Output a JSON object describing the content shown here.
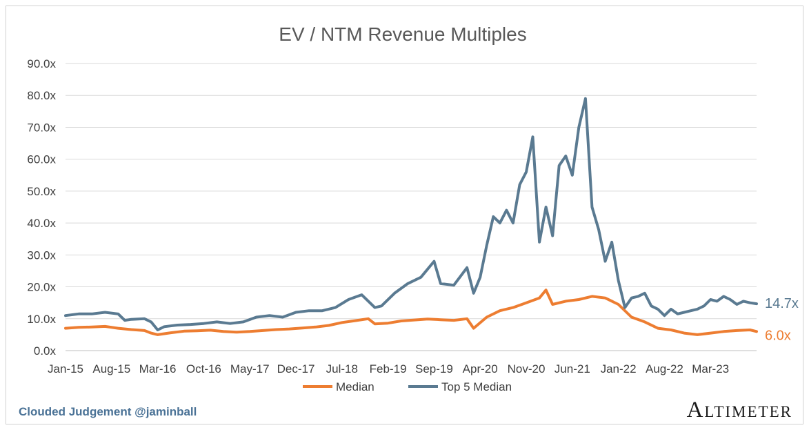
{
  "footer": {
    "credit": "Clouded Judgement @jaminball",
    "brand": "Altimeter"
  },
  "chart_data": {
    "type": "line",
    "title": "EV / NTM Revenue Multiples",
    "xlabel": "",
    "ylabel": "",
    "ylim": [
      0,
      90
    ],
    "yticks": [
      "0.0x",
      "10.0x",
      "20.0x",
      "30.0x",
      "40.0x",
      "50.0x",
      "60.0x",
      "70.0x",
      "80.0x",
      "90.0x"
    ],
    "xticks": [
      "Jan-15",
      "Aug-15",
      "Mar-16",
      "Oct-16",
      "May-17",
      "Dec-17",
      "Jul-18",
      "Feb-19",
      "Sep-19",
      "Apr-20",
      "Nov-20",
      "Jun-21",
      "Jan-22",
      "Aug-22",
      "Mar-23"
    ],
    "xlim": [
      "2015-01",
      "2023-10"
    ],
    "grid": true,
    "legend_position": "bottom",
    "colors": {
      "median": "#ed7d31",
      "top5": "#5a7a91",
      "grid": "#d9d9d9"
    },
    "series": [
      {
        "name": "Median",
        "color": "#ed7d31",
        "end_label": "6.0x",
        "x": [
          "2015-01",
          "2015-03",
          "2015-05",
          "2015-07",
          "2015-09",
          "2015-11",
          "2016-01",
          "2016-02",
          "2016-03",
          "2016-05",
          "2016-07",
          "2016-09",
          "2016-11",
          "2017-01",
          "2017-03",
          "2017-05",
          "2017-07",
          "2017-09",
          "2017-11",
          "2018-01",
          "2018-03",
          "2018-05",
          "2018-07",
          "2018-09",
          "2018-11",
          "2018-12",
          "2019-02",
          "2019-04",
          "2019-06",
          "2019-08",
          "2019-10",
          "2019-12",
          "2020-02",
          "2020-03",
          "2020-05",
          "2020-07",
          "2020-09",
          "2020-11",
          "2021-01",
          "2021-02",
          "2021-03",
          "2021-05",
          "2021-07",
          "2021-09",
          "2021-11",
          "2022-01",
          "2022-03",
          "2022-05",
          "2022-07",
          "2022-09",
          "2022-11",
          "2023-01",
          "2023-03",
          "2023-05",
          "2023-07",
          "2023-09",
          "2023-10"
        ],
        "y": [
          7.0,
          7.3,
          7.4,
          7.6,
          7.0,
          6.6,
          6.3,
          5.5,
          5.0,
          5.6,
          6.1,
          6.2,
          6.4,
          6.0,
          5.8,
          6.0,
          6.3,
          6.6,
          6.8,
          7.1,
          7.4,
          7.9,
          8.8,
          9.4,
          10.0,
          8.4,
          8.6,
          9.3,
          9.6,
          9.9,
          9.7,
          9.5,
          10.0,
          7.0,
          10.5,
          12.5,
          13.5,
          15.0,
          16.5,
          19.0,
          14.5,
          15.5,
          16.0,
          17.0,
          16.5,
          14.5,
          10.5,
          9.0,
          7.0,
          6.5,
          5.5,
          5.0,
          5.5,
          6.0,
          6.3,
          6.5,
          6.0
        ]
      },
      {
        "name": "Top 5 Median",
        "color": "#5a7a91",
        "end_label": "14.7x",
        "x": [
          "2015-01",
          "2015-03",
          "2015-05",
          "2015-07",
          "2015-09",
          "2015-10",
          "2015-11",
          "2016-01",
          "2016-02",
          "2016-03",
          "2016-04",
          "2016-06",
          "2016-08",
          "2016-10",
          "2016-12",
          "2017-02",
          "2017-04",
          "2017-06",
          "2017-08",
          "2017-10",
          "2017-12",
          "2018-02",
          "2018-04",
          "2018-06",
          "2018-08",
          "2018-10",
          "2018-12",
          "2019-01",
          "2019-03",
          "2019-05",
          "2019-07",
          "2019-09",
          "2019-10",
          "2019-12",
          "2020-02",
          "2020-03",
          "2020-04",
          "2020-05",
          "2020-06",
          "2020-07",
          "2020-08",
          "2020-09",
          "2020-10",
          "2020-11",
          "2020-12",
          "2021-01",
          "2021-02",
          "2021-03",
          "2021-04",
          "2021-05",
          "2021-06",
          "2021-07",
          "2021-08",
          "2021-09",
          "2021-10",
          "2021-11",
          "2021-12",
          "2022-01",
          "2022-02",
          "2022-03",
          "2022-04",
          "2022-05",
          "2022-06",
          "2022-07",
          "2022-08",
          "2022-09",
          "2022-10",
          "2022-11",
          "2022-12",
          "2023-01",
          "2023-02",
          "2023-03",
          "2023-04",
          "2023-05",
          "2023-06",
          "2023-07",
          "2023-08",
          "2023-09",
          "2023-10"
        ],
        "y": [
          11.0,
          11.5,
          11.5,
          12.0,
          11.5,
          9.5,
          9.8,
          10.0,
          9.0,
          6.5,
          7.5,
          8.0,
          8.2,
          8.5,
          9.0,
          8.5,
          9.0,
          10.5,
          11.0,
          10.5,
          12.0,
          12.5,
          12.5,
          13.5,
          16.0,
          17.5,
          13.5,
          14.0,
          18.0,
          21.0,
          23.0,
          28.0,
          21.0,
          20.5,
          26.0,
          18.0,
          23.0,
          33.0,
          42.0,
          40.0,
          44.0,
          40.0,
          52.0,
          56.0,
          67.0,
          34.0,
          45.0,
          36.0,
          58.0,
          61.0,
          55.0,
          70.0,
          79.0,
          45.0,
          38.0,
          28.0,
          34.0,
          22.0,
          13.5,
          16.5,
          17.0,
          18.0,
          14.0,
          13.0,
          11.0,
          13.0,
          11.5,
          12.0,
          12.5,
          13.0,
          14.0,
          16.0,
          15.5,
          17.0,
          16.0,
          14.5,
          15.5,
          15.0,
          14.7
        ]
      }
    ]
  }
}
